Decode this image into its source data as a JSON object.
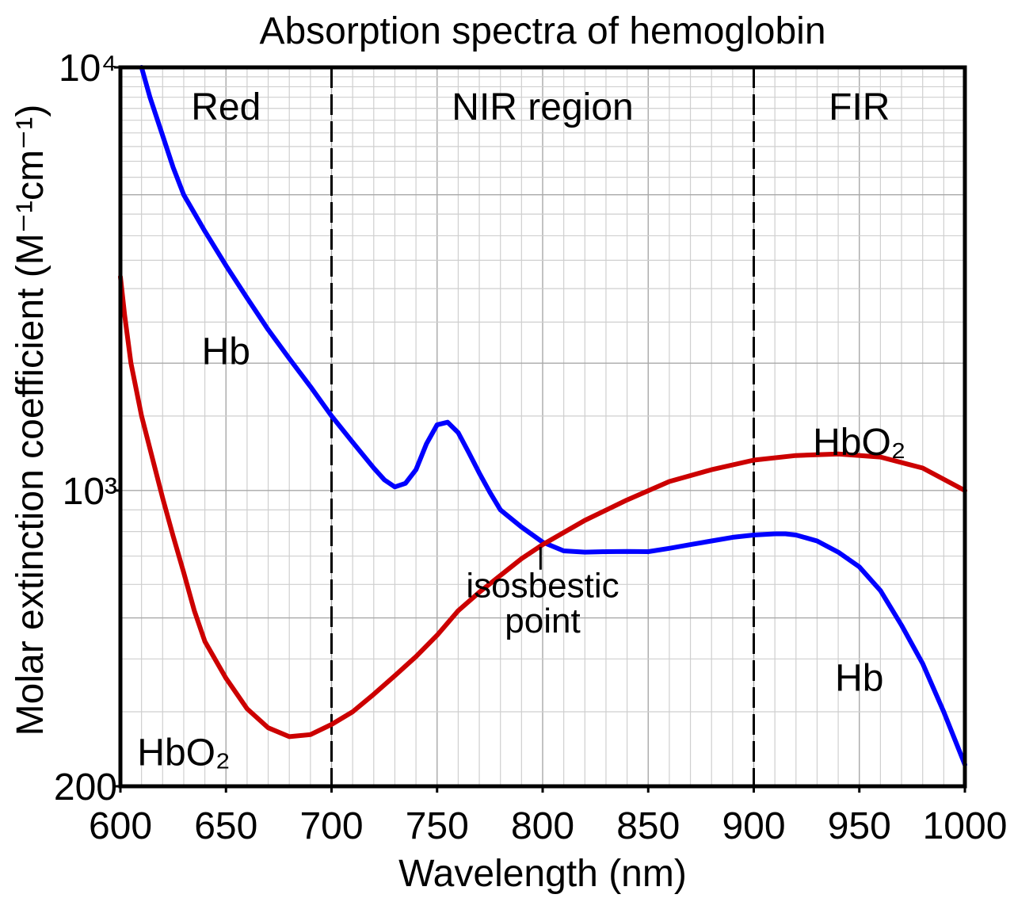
{
  "chart_data": {
    "type": "line",
    "title": "Absorption spectra of hemoglobin",
    "xlabel": "Wavelength (nm)",
    "ylabel": "Molar extinction coefficient (M⁻¹cm⁻¹)",
    "xlim": [
      600,
      1000
    ],
    "ylim": [
      200,
      10000
    ],
    "yscale": "log",
    "grid": true,
    "x_ticks": [
      600,
      650,
      700,
      750,
      800,
      850,
      900,
      950,
      1000
    ],
    "x_tick_labels": [
      "600",
      "650",
      "700",
      "750",
      "800",
      "850",
      "900",
      "950",
      "1000"
    ],
    "y_ticks": [
      200,
      1000,
      10000
    ],
    "y_tick_labels": [
      "200",
      "10³",
      "10⁴"
    ],
    "regions": [
      {
        "label": "Red",
        "from": 600,
        "to": 700
      },
      {
        "label": "NIR region",
        "from": 700,
        "to": 900
      },
      {
        "label": "FIR",
        "from": 900,
        "to": 1000
      }
    ],
    "boundaries": [
      700,
      900
    ],
    "series": [
      {
        "name": "Hb",
        "color": "#0000ff",
        "x": [
          610,
          614,
          620,
          625,
          630,
          640,
          650,
          660,
          670,
          680,
          690,
          700,
          710,
          720,
          725,
          730,
          735,
          740,
          745,
          750,
          755,
          760,
          765,
          770,
          775,
          780,
          790,
          800,
          810,
          820,
          830,
          840,
          850,
          860,
          870,
          880,
          890,
          900,
          910,
          915,
          920,
          930,
          940,
          950,
          960,
          970,
          980,
          990,
          1000
        ],
        "values": [
          10000,
          8500,
          6900,
          5800,
          5000,
          4100,
          3400,
          2850,
          2400,
          2050,
          1760,
          1500,
          1300,
          1130,
          1060,
          1020,
          1040,
          1120,
          1290,
          1430,
          1450,
          1370,
          1230,
          1100,
          990,
          900,
          820,
          755,
          720,
          715,
          717,
          718,
          717,
          730,
          745,
          760,
          775,
          785,
          790,
          790,
          785,
          760,
          715,
          660,
          580,
          480,
          390,
          300,
          225
        ]
      },
      {
        "name": "HbO₂",
        "color": "#cc0000",
        "x": [
          600,
          602,
          605,
          610,
          615,
          620,
          625,
          630,
          635,
          640,
          650,
          660,
          670,
          680,
          690,
          700,
          710,
          720,
          730,
          740,
          750,
          760,
          770,
          780,
          790,
          800,
          820,
          840,
          860,
          880,
          900,
          920,
          940,
          960,
          980,
          1000
        ],
        "values": [
          3200,
          2600,
          2000,
          1500,
          1200,
          960,
          780,
          640,
          520,
          440,
          360,
          305,
          275,
          262,
          265,
          280,
          300,
          330,
          365,
          405,
          455,
          520,
          575,
          630,
          690,
          745,
          850,
          950,
          1050,
          1120,
          1180,
          1210,
          1220,
          1200,
          1130,
          1000
        ]
      }
    ],
    "annotations": [
      {
        "text": "Hb",
        "x": 650,
        "y": 2130
      },
      {
        "text": "HbO₂",
        "x": 630,
        "y": 240
      },
      {
        "text": "HbO₂",
        "x": 950,
        "y": 1300
      },
      {
        "text": "Hb",
        "x": 950,
        "y": 360
      },
      {
        "text": "isosbestic",
        "x": 800,
        "y": 600
      },
      {
        "text": "point",
        "x": 800,
        "y": 495
      }
    ],
    "isosbestic_marker": {
      "x": 799,
      "y_from": 735,
      "y_to": 650
    }
  }
}
